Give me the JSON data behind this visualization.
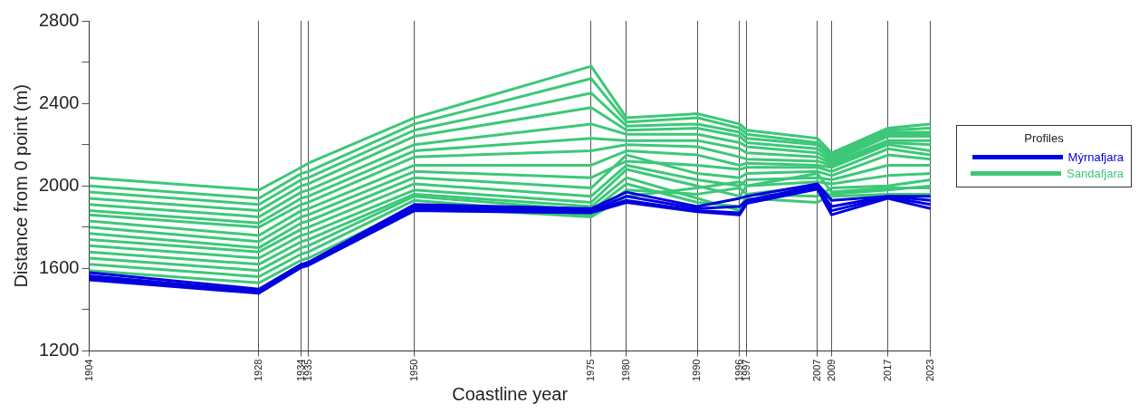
{
  "chart_data": {
    "type": "line",
    "xlabel": "Coastline year",
    "ylabel": "Distance from 0 point (m)",
    "legend_title": "Profiles",
    "legend": "right",
    "grid": "x",
    "xlim": [
      1904,
      2023
    ],
    "xticks": [
      1904,
      1928,
      1934,
      1935,
      1950,
      1975,
      1980,
      1990,
      1996,
      1997,
      2007,
      2009,
      2017,
      2023
    ],
    "ylim": [
      1200,
      2800
    ],
    "yticks": [
      1200,
      {
        "value": 1400,
        "label": null
      },
      1600,
      {
        "value": 1800,
        "label": null
      },
      2000,
      {
        "value": 2200,
        "label": null
      },
      2400,
      {
        "value": 2600,
        "label": null
      },
      2800
    ],
    "x": [
      1904,
      1928,
      1934,
      1935,
      1950,
      1975,
      1980,
      1990,
      1996,
      1997,
      2007,
      2009,
      2017,
      2023
    ],
    "series": [
      {
        "name": "Mýrnafjara",
        "color": "#0000e0",
        "values": [
          1580,
          1500,
          1620,
          1630,
          1910,
          1890,
          1970,
          1900,
          1940,
          1950,
          2010,
          1930,
          1950,
          1950
        ]
      },
      {
        "color": "#0000e0",
        "values": [
          1565,
          1490,
          1615,
          1625,
          1900,
          1880,
          1950,
          1890,
          1900,
          1930,
          2000,
          1900,
          1950,
          1930
        ]
      },
      {
        "color": "#0000e0",
        "values": [
          1555,
          1485,
          1610,
          1620,
          1890,
          1875,
          1930,
          1880,
          1870,
          1920,
          1990,
          1880,
          1945,
          1910
        ]
      },
      {
        "color": "#0000e0",
        "values": [
          1545,
          1480,
          1605,
          1615,
          1880,
          1870,
          1920,
          1875,
          1860,
          1915,
          1985,
          1860,
          1940,
          1890
        ]
      },
      {
        "name": "Sandafjara",
        "color": "#3cc878",
        "values": [
          1590,
          1530,
          1640,
          1650,
          1900,
          1850,
          1950,
          1990,
          2020,
          2000,
          2060,
          1970,
          1990,
          1990
        ]
      },
      {
        "color": "#3cc878",
        "values": [
          1620,
          1560,
          1670,
          1680,
          1930,
          1860,
          1980,
          1960,
          1990,
          1960,
          2000,
          1950,
          1960,
          1960
        ]
      },
      {
        "color": "#3cc878",
        "values": [
          1650,
          1590,
          1700,
          1710,
          1950,
          1880,
          2010,
          1920,
          1900,
          1940,
          1920,
          1960,
          1980,
          2000
        ]
      },
      {
        "color": "#3cc878",
        "values": [
          1680,
          1620,
          1730,
          1740,
          1960,
          1900,
          2040,
          1940,
          1880,
          1960,
          1950,
          1990,
          2000,
          2030
        ]
      },
      {
        "color": "#3cc878",
        "values": [
          1710,
          1650,
          1760,
          1770,
          1980,
          1920,
          2080,
          2000,
          1950,
          2000,
          2020,
          2010,
          2050,
          2060
        ]
      },
      {
        "color": "#3cc878",
        "values": [
          1740,
          1680,
          1790,
          1800,
          2010,
          1950,
          2100,
          2030,
          2000,
          2030,
          2040,
          2030,
          2100,
          2100
        ]
      },
      {
        "color": "#3cc878",
        "values": [
          1770,
          1700,
          1820,
          1830,
          2040,
          1990,
          2150,
          2060,
          2040,
          2060,
          2070,
          2050,
          2150,
          2130
        ]
      },
      {
        "color": "#3cc878",
        "values": [
          1800,
          1730,
          1850,
          1860,
          2070,
          2040,
          2120,
          2100,
          2080,
          2090,
          2090,
          2070,
          2180,
          2150
        ]
      },
      {
        "color": "#3cc878",
        "values": [
          1830,
          1760,
          1880,
          1890,
          2100,
          2100,
          2170,
          2150,
          2100,
          2110,
          2100,
          2090,
          2200,
          2170
        ]
      },
      {
        "color": "#3cc878",
        "values": [
          1860,
          1800,
          1910,
          1920,
          2140,
          2170,
          2200,
          2190,
          2140,
          2130,
          2120,
          2100,
          2210,
          2200
        ]
      },
      {
        "color": "#3cc878",
        "values": [
          1880,
          1820,
          1940,
          1950,
          2170,
          2230,
          2220,
          2220,
          2180,
          2160,
          2140,
          2110,
          2220,
          2220
        ]
      },
      {
        "color": "#3cc878",
        "values": [
          1910,
          1850,
          1970,
          1980,
          2200,
          2300,
          2250,
          2250,
          2210,
          2190,
          2160,
          2120,
          2240,
          2240
        ]
      },
      {
        "color": "#3cc878",
        "values": [
          1940,
          1880,
          2000,
          2010,
          2240,
          2380,
          2270,
          2280,
          2240,
          2210,
          2180,
          2130,
          2250,
          2250
        ]
      },
      {
        "color": "#3cc878",
        "values": [
          1970,
          1910,
          2030,
          2040,
          2270,
          2450,
          2290,
          2300,
          2260,
          2230,
          2200,
          2140,
          2260,
          2260
        ]
      },
      {
        "color": "#3cc878",
        "values": [
          2000,
          1940,
          2060,
          2070,
          2300,
          2520,
          2310,
          2330,
          2280,
          2250,
          2210,
          2150,
          2270,
          2280
        ]
      },
      {
        "color": "#3cc878",
        "values": [
          2040,
          1980,
          2090,
          2110,
          2330,
          2580,
          2330,
          2350,
          2300,
          2270,
          2230,
          2160,
          2280,
          2300
        ]
      }
    ]
  }
}
